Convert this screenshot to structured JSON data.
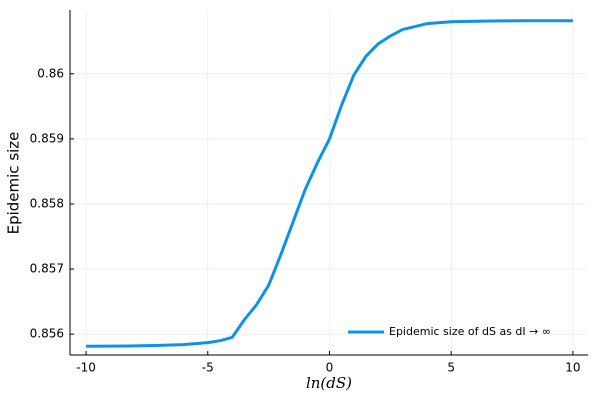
{
  "chart_data": {
    "type": "line",
    "x_label": "ln(dS)",
    "y_label": "Epidemic size",
    "x": [
      -10,
      -9,
      -8,
      -7,
      -6,
      -5,
      -4.5,
      -4,
      -3.5,
      -3,
      -2.5,
      -2,
      -1.5,
      -1,
      -0.5,
      0,
      0.5,
      1,
      1.5,
      2,
      2.5,
      3,
      4,
      5,
      6,
      7,
      8,
      9,
      10
    ],
    "series": [
      {
        "name": "Epidemic size of dS as dI → ∞",
        "color": "#0d93e6",
        "values": [
          0.855815,
          0.855816,
          0.85582,
          0.855828,
          0.85584,
          0.85587,
          0.8559,
          0.85595,
          0.85622,
          0.85645,
          0.85675,
          0.85722,
          0.85772,
          0.85822,
          0.85863,
          0.859,
          0.85952,
          0.85998,
          0.86027,
          0.86046,
          0.86058,
          0.86068,
          0.86077,
          0.8608,
          0.860808,
          0.860812,
          0.860814,
          0.860815,
          0.860815
        ]
      }
    ],
    "xlim": [
      -10.66,
      10.62
    ],
    "ylim": [
      0.85568,
      0.86098
    ],
    "xticks": [
      -10,
      -5,
      0,
      5,
      10
    ],
    "yticks": [
      0.856,
      0.857,
      0.858,
      0.859,
      0.86
    ],
    "grid": true,
    "legend": "bottom-right"
  }
}
